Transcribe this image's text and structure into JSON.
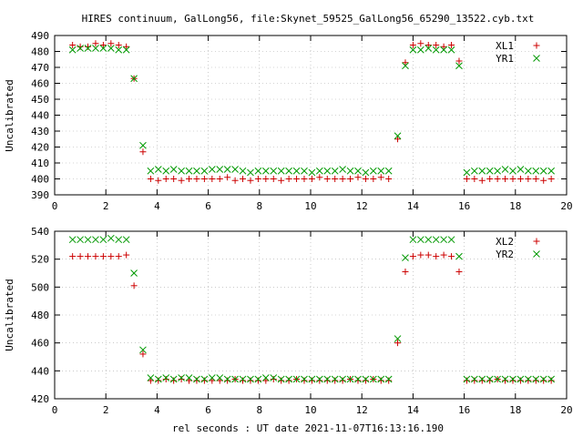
{
  "title": "HIRES continuum, GalLong56, file:Skynet_59525_GalLong56_65290_13522.cyb.txt",
  "xlabel": "rel seconds : UT date 2021-11-07T16:13:16.190",
  "colors": {
    "L": "#cc0000",
    "R": "#009900",
    "frame": "#000000",
    "grid": "#aaaaaa"
  },
  "chart_data": [
    {
      "type": "scatter",
      "ylabel": "Uncalibrated",
      "xlim": [
        0,
        20
      ],
      "ylim": [
        390,
        490
      ],
      "grid": true,
      "legend_position": "top-right",
      "xticks": [
        0,
        2,
        4,
        6,
        8,
        10,
        12,
        14,
        16,
        18,
        20
      ],
      "yticks": [
        390,
        400,
        410,
        420,
        430,
        440,
        450,
        460,
        470,
        480,
        490
      ],
      "series": [
        {
          "name": "XL1",
          "marker": "plus",
          "color": "#cc0000",
          "x": [
            0.7,
            1.0,
            1.3,
            1.6,
            1.9,
            2.2,
            2.5,
            2.8,
            3.1,
            3.45,
            3.75,
            4.05,
            4.35,
            4.65,
            4.95,
            5.25,
            5.55,
            5.85,
            6.15,
            6.45,
            6.75,
            7.05,
            7.35,
            7.65,
            7.95,
            8.25,
            8.55,
            8.85,
            9.15,
            9.45,
            9.75,
            10.05,
            10.35,
            10.65,
            10.95,
            11.25,
            11.55,
            11.85,
            12.15,
            12.45,
            12.75,
            13.05,
            13.4,
            13.7,
            14.0,
            14.3,
            14.6,
            14.9,
            15.2,
            15.5,
            15.8,
            16.1,
            16.4,
            16.7,
            17.0,
            17.3,
            17.6,
            17.9,
            18.2,
            18.5,
            18.8,
            19.1,
            19.4
          ],
          "y": [
            484,
            483,
            483,
            485,
            484,
            485,
            484,
            483,
            463,
            417,
            400,
            399,
            400,
            400,
            399,
            400,
            400,
            400,
            400,
            400,
            401,
            399,
            400,
            399,
            400,
            400,
            400,
            399,
            400,
            400,
            400,
            400,
            401,
            400,
            400,
            400,
            400,
            401,
            400,
            400,
            401,
            400,
            425,
            473,
            484,
            485,
            484,
            484,
            483,
            484,
            474,
            400,
            400,
            399,
            400,
            400,
            400,
            400,
            400,
            400,
            400,
            399,
            400
          ]
        },
        {
          "name": "YR1",
          "marker": "cross",
          "color": "#009900",
          "x": [
            0.7,
            1.0,
            1.3,
            1.6,
            1.9,
            2.2,
            2.5,
            2.8,
            3.1,
            3.45,
            3.75,
            4.05,
            4.35,
            4.65,
            4.95,
            5.25,
            5.55,
            5.85,
            6.15,
            6.45,
            6.75,
            7.05,
            7.35,
            7.65,
            7.95,
            8.25,
            8.55,
            8.85,
            9.15,
            9.45,
            9.75,
            10.05,
            10.35,
            10.65,
            10.95,
            11.25,
            11.55,
            11.85,
            12.15,
            12.45,
            12.75,
            13.05,
            13.4,
            13.7,
            14.0,
            14.3,
            14.6,
            14.9,
            15.2,
            15.5,
            15.8,
            16.1,
            16.4,
            16.7,
            17.0,
            17.3,
            17.6,
            17.9,
            18.2,
            18.5,
            18.8,
            19.1,
            19.4
          ],
          "y": [
            481,
            482,
            482,
            482,
            482,
            482,
            481,
            481,
            463,
            421,
            405,
            406,
            405,
            406,
            405,
            405,
            405,
            405,
            406,
            406,
            406,
            406,
            405,
            404,
            405,
            405,
            405,
            405,
            405,
            405,
            405,
            404,
            405,
            405,
            405,
            406,
            405,
            405,
            404,
            405,
            405,
            405,
            427,
            471,
            481,
            481,
            482,
            481,
            481,
            481,
            471,
            404,
            405,
            405,
            405,
            405,
            406,
            405,
            406,
            405,
            405,
            405,
            405
          ]
        }
      ]
    },
    {
      "type": "scatter",
      "ylabel": "Uncalibrated",
      "xlim": [
        0,
        20
      ],
      "ylim": [
        420,
        540
      ],
      "grid": true,
      "legend_position": "top-right",
      "xticks": [
        0,
        2,
        4,
        6,
        8,
        10,
        12,
        14,
        16,
        18,
        20
      ],
      "yticks": [
        420,
        440,
        460,
        480,
        500,
        520,
        540
      ],
      "series": [
        {
          "name": "XL2",
          "marker": "plus",
          "color": "#cc0000",
          "x": [
            0.7,
            1.0,
            1.3,
            1.6,
            1.9,
            2.2,
            2.5,
            2.8,
            3.1,
            3.45,
            3.75,
            4.05,
            4.35,
            4.65,
            4.95,
            5.25,
            5.55,
            5.85,
            6.15,
            6.45,
            6.75,
            7.05,
            7.35,
            7.65,
            7.95,
            8.25,
            8.55,
            8.85,
            9.15,
            9.45,
            9.75,
            10.05,
            10.35,
            10.65,
            10.95,
            11.25,
            11.55,
            11.85,
            12.15,
            12.45,
            12.75,
            13.05,
            13.4,
            13.7,
            14.0,
            14.3,
            14.6,
            14.9,
            15.2,
            15.5,
            15.8,
            16.1,
            16.4,
            16.7,
            17.0,
            17.3,
            17.6,
            17.9,
            18.2,
            18.5,
            18.8,
            19.1,
            19.4
          ],
          "y": [
            522,
            522,
            522,
            522,
            522,
            522,
            522,
            523,
            501,
            452,
            433,
            433,
            434,
            433,
            434,
            433,
            433,
            433,
            433,
            433,
            433,
            434,
            433,
            433,
            433,
            433,
            434,
            433,
            433,
            434,
            433,
            433,
            433,
            433,
            433,
            433,
            434,
            433,
            433,
            434,
            433,
            433,
            460,
            511,
            522,
            523,
            523,
            522,
            523,
            522,
            511,
            433,
            433,
            433,
            433,
            434,
            433,
            433,
            433,
            433,
            433,
            433,
            433
          ]
        },
        {
          "name": "YR2",
          "marker": "cross",
          "color": "#009900",
          "x": [
            0.7,
            1.0,
            1.3,
            1.6,
            1.9,
            2.2,
            2.5,
            2.8,
            3.1,
            3.45,
            3.75,
            4.05,
            4.35,
            4.65,
            4.95,
            5.25,
            5.55,
            5.85,
            6.15,
            6.45,
            6.75,
            7.05,
            7.35,
            7.65,
            7.95,
            8.25,
            8.55,
            8.85,
            9.15,
            9.45,
            9.75,
            10.05,
            10.35,
            10.65,
            10.95,
            11.25,
            11.55,
            11.85,
            12.15,
            12.45,
            12.75,
            13.05,
            13.4,
            13.7,
            14.0,
            14.3,
            14.6,
            14.9,
            15.2,
            15.5,
            15.8,
            16.1,
            16.4,
            16.7,
            17.0,
            17.3,
            17.6,
            17.9,
            18.2,
            18.5,
            18.8,
            19.1,
            19.4
          ],
          "y": [
            534,
            534,
            534,
            534,
            534,
            535,
            534,
            534,
            510,
            455,
            435,
            434,
            435,
            434,
            435,
            435,
            434,
            434,
            435,
            435,
            434,
            434,
            434,
            434,
            434,
            435,
            435,
            434,
            434,
            434,
            434,
            434,
            434,
            434,
            434,
            434,
            434,
            434,
            434,
            434,
            434,
            434,
            463,
            521,
            534,
            534,
            534,
            534,
            534,
            534,
            522,
            434,
            434,
            434,
            434,
            434,
            434,
            434,
            434,
            434,
            434,
            434,
            434
          ]
        }
      ]
    }
  ]
}
